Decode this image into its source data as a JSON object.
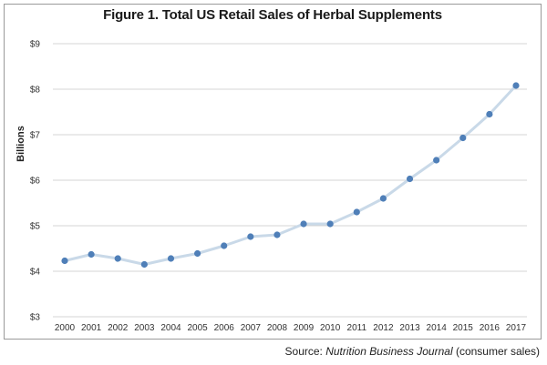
{
  "chart_data": {
    "type": "line",
    "title": "Figure 1. Total US Retail Sales of Herbal Supplements",
    "ylabel": "Billions",
    "xlabel": "",
    "ylim": [
      3,
      9
    ],
    "y_ticks": [
      "$3",
      "$4",
      "$5",
      "$6",
      "$7",
      "$8",
      "$9"
    ],
    "grid": true,
    "x": [
      "2000",
      "2001",
      "2002",
      "2003",
      "2004",
      "2005",
      "2006",
      "2007",
      "2008",
      "2009",
      "2010",
      "2011",
      "2012",
      "2013",
      "2014",
      "2015",
      "2016",
      "2017"
    ],
    "series": [
      {
        "values": [
          4.23,
          4.37,
          4.28,
          4.15,
          4.28,
          4.39,
          4.56,
          4.76,
          4.8,
          5.04,
          5.04,
          5.3,
          5.6,
          6.03,
          6.44,
          6.93,
          7.45,
          8.08
        ]
      }
    ],
    "line_color": "#c9d9e8",
    "marker_color": "#4f7fb8",
    "source": {
      "prefix": "Source: ",
      "journal": "Nutrition Business Journal",
      "suffix": " (consumer sales)"
    }
  }
}
